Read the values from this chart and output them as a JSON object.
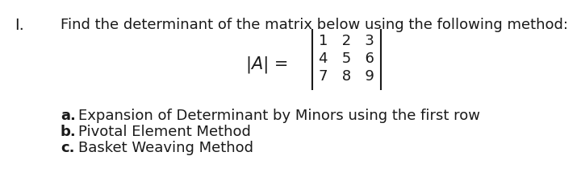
{
  "background_color": "#ffffff",
  "font_color": "#1a1a1a",
  "roman_numeral": "I.",
  "title_text": "Find the determinant of the matrix below using the following method:",
  "lhs_text": "|A| =",
  "matrix_row1": "1   2   3",
  "matrix_row2": "4   5   6",
  "matrix_row3": "7   8   9",
  "item_a_bold": "a.",
  "item_a_rest": "Expansion of Determinant by Minors using the first row",
  "item_b_bold": "b.",
  "item_b_rest": "Pivotal Element Method",
  "item_c_bold": "c.",
  "item_c_rest": "Basket Weaving Method",
  "title_fontsize": 13,
  "body_fontsize": 13,
  "roman_fontsize": 14
}
